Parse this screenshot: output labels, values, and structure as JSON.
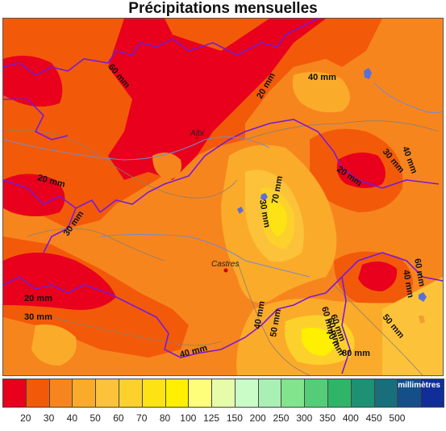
{
  "title": "Précipitations mensuelles",
  "legend": {
    "unit": "millimètres",
    "colors": [
      "#e8001c",
      "#f25a0a",
      "#f7851e",
      "#fbab2a",
      "#fcc33a",
      "#fdd12c",
      "#fee314",
      "#fef000",
      "#fefe7a",
      "#e6fcaa",
      "#cafcc8",
      "#a9f0b4",
      "#82e48c",
      "#55cc78",
      "#2fb468",
      "#1e9074",
      "#196e7c",
      "#144f88",
      "#0f2f96"
    ],
    "ticks": [
      "20",
      "30",
      "40",
      "50",
      "60",
      "70",
      "80",
      "100",
      "125",
      "150",
      "200",
      "250",
      "300",
      "350",
      "400",
      "450",
      "500"
    ]
  },
  "towns": [
    {
      "name": "Albi"
    },
    {
      "name": "Castres"
    }
  ],
  "contour_labels": [
    "60 mm",
    "20 mm",
    "40 mm",
    "30 mm",
    "40 mm",
    "20 mm",
    "20 mm",
    "30 mm",
    "30 mm",
    "70 mm",
    "60 mm",
    "20 mm",
    "30 mm",
    "40 mm",
    "60 mm",
    "40 mm",
    "50 mm",
    "60 mm",
    "70 mm",
    "80 mm",
    "50 mm",
    "40 mm",
    "60 mm"
  ]
}
